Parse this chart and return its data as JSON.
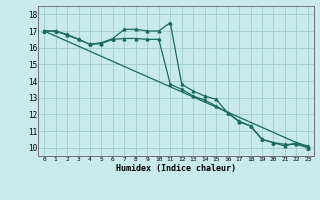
{
  "xlabel": "Humidex (Indice chaleur)",
  "bg_color": "#c8eaea",
  "grid_color": "#a0cccc",
  "line_color": "#1a6b5a",
  "xlim": [
    -0.5,
    23.5
  ],
  "ylim": [
    9.5,
    18.5
  ],
  "xticks": [
    0,
    1,
    2,
    3,
    4,
    5,
    6,
    7,
    8,
    9,
    10,
    11,
    12,
    13,
    14,
    15,
    16,
    17,
    18,
    19,
    20,
    21,
    22,
    23
  ],
  "yticks": [
    10,
    11,
    12,
    13,
    14,
    15,
    16,
    17,
    18
  ],
  "line1_x": [
    0,
    1,
    2,
    3,
    4,
    5,
    6,
    7,
    8,
    9,
    10,
    11,
    12,
    13,
    14,
    15,
    16,
    17,
    18,
    19,
    20,
    21,
    22,
    23
  ],
  "line1_y": [
    17.0,
    17.0,
    16.8,
    16.5,
    16.2,
    16.3,
    16.55,
    17.1,
    17.1,
    17.0,
    17.0,
    17.5,
    13.8,
    13.4,
    13.1,
    12.9,
    12.1,
    11.6,
    11.3,
    10.5,
    10.3,
    10.1,
    10.3,
    10.1
  ],
  "line2_x": [
    0,
    1,
    2,
    3,
    4,
    5,
    6,
    7,
    8,
    9,
    10,
    11,
    12,
    13,
    14,
    15,
    16,
    17,
    18,
    19,
    20,
    21,
    22,
    23
  ],
  "line2_y": [
    17.0,
    17.0,
    16.75,
    16.5,
    16.2,
    16.25,
    16.5,
    16.55,
    16.55,
    16.5,
    16.5,
    13.8,
    13.5,
    13.1,
    12.85,
    12.5,
    12.1,
    11.55,
    11.3,
    10.5,
    10.3,
    10.2,
    10.2,
    10.0
  ],
  "line3_x": [
    0,
    23
  ],
  "line3_y": [
    17.0,
    10.0
  ]
}
